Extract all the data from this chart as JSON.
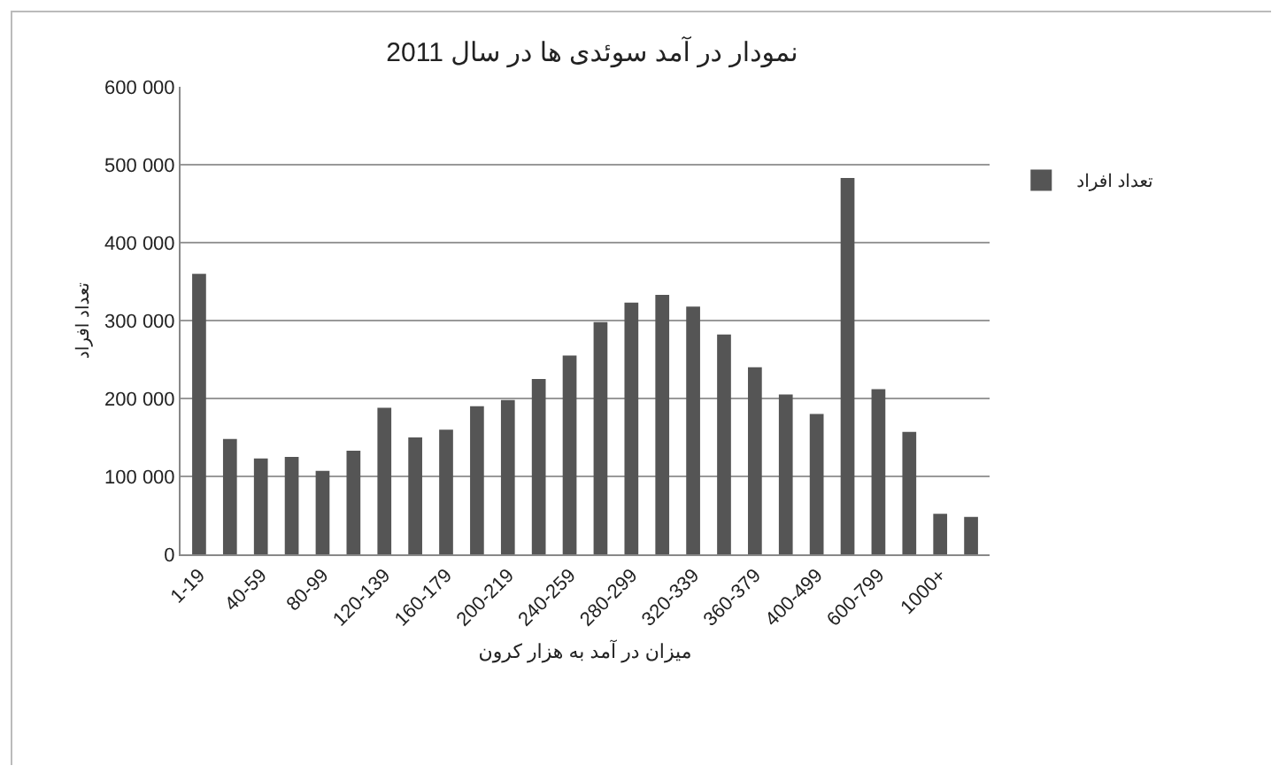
{
  "chart_data": {
    "type": "bar",
    "title": "نمودار در آمد سوئدی ها در سال 2011",
    "xlabel": "میزان در آمد به هزار کرون",
    "ylabel": "تعداد افراد",
    "categories": [
      "1-19",
      null,
      "40-59",
      null,
      "80-99",
      null,
      "120-139",
      null,
      "160-179",
      null,
      "200-219",
      null,
      "240-259",
      null,
      "280-299",
      null,
      "320-339",
      null,
      "360-379",
      null,
      "400-499",
      null,
      "600-799",
      null,
      "1000+",
      null
    ],
    "series": [
      {
        "name": "تعداد افراد",
        "color": "#555555",
        "values": [
          360000,
          148000,
          123000,
          125000,
          107000,
          133000,
          188000,
          150000,
          160000,
          190000,
          198000,
          225000,
          255000,
          298000,
          323000,
          333000,
          318000,
          282000,
          240000,
          205000,
          180000,
          483000,
          212000,
          157000,
          52000,
          48000
        ]
      }
    ],
    "ylim": [
      0,
      600000
    ],
    "yticks": [
      {
        "value": 0,
        "label": "0"
      },
      {
        "value": 100000,
        "label": "100 000"
      },
      {
        "value": 200000,
        "label": "200 000"
      },
      {
        "value": 300000,
        "label": "300 000"
      },
      {
        "value": 400000,
        "label": "400 000"
      },
      {
        "value": 500000,
        "label": "500 000"
      },
      {
        "value": 600000,
        "label": "600 000"
      }
    ],
    "grid": "y",
    "legend": "right"
  }
}
